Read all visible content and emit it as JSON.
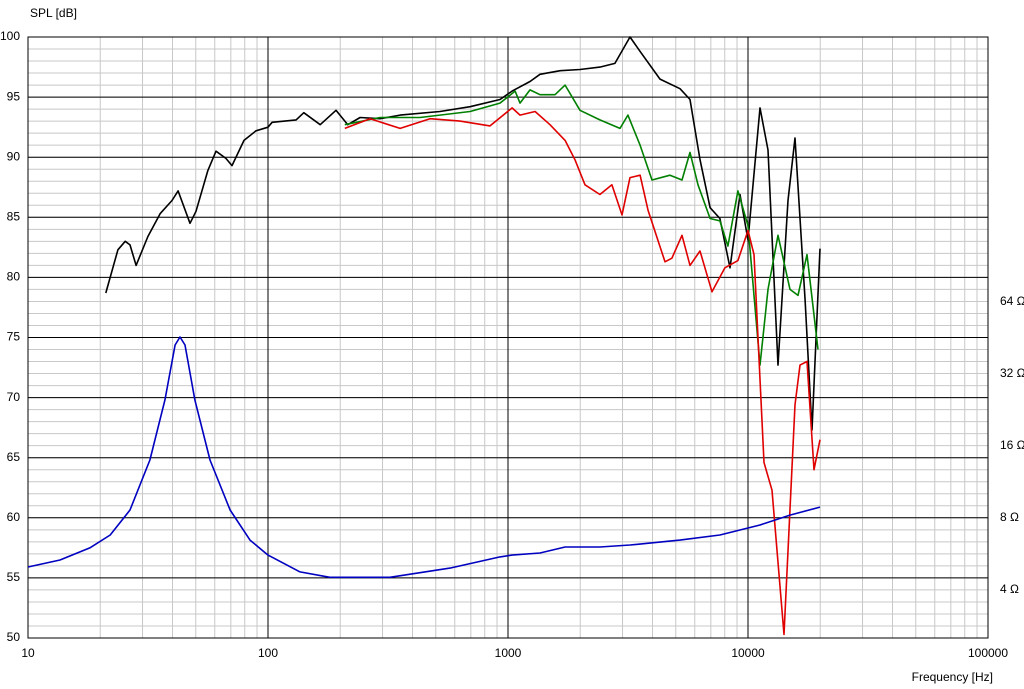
{
  "chart_data": {
    "type": "line",
    "ylabel": "SPL [dB]",
    "xlabel": "Frequency [Hz]",
    "xscale": "log",
    "xlim": [
      10,
      100000
    ],
    "xticks": [
      10,
      100,
      1000,
      10000,
      100000
    ],
    "ylim": [
      50,
      100
    ],
    "yticks": [
      50,
      55,
      60,
      65,
      70,
      75,
      80,
      85,
      90,
      95,
      100
    ],
    "y2scale": "log",
    "y2lim": [
      2.52,
      820.8
    ],
    "y2ticks": [
      {
        "value": 4,
        "label": "4 Ω"
      },
      {
        "value": 8,
        "label": "8 Ω"
      },
      {
        "value": 16,
        "label": "16 Ω"
      },
      {
        "value": 32,
        "label": "32 Ω"
      },
      {
        "value": 64,
        "label": "64 Ω"
      }
    ],
    "grid": true,
    "series": [
      {
        "color": "#000000",
        "x": [
          21.1,
          23.7,
          25.4,
          26.6,
          28.2,
          31.6,
          35.5,
          39.8,
          42.2,
          47.3,
          50.1,
          56.2,
          60.7,
          66.8,
          70.8,
          79.4,
          89.1,
          100,
          104,
          131,
          141,
          165,
          192,
          215,
          242,
          293,
          355,
          521,
          695,
          926,
          1040,
          1235,
          1360,
          1650,
          1995,
          2415,
          2790,
          3225,
          3550,
          4300,
          5210,
          5730,
          6310,
          6950,
          7640,
          8410,
          9260,
          10000,
          11220,
          12120,
          13340,
          14680,
          15700,
          17290,
          18480,
          19950
        ],
        "values": [
          78.7,
          82.3,
          83.0,
          82.7,
          81.0,
          83.4,
          85.3,
          86.4,
          87.2,
          84.5,
          85.5,
          88.9,
          90.5,
          89.9,
          89.3,
          91.4,
          92.2,
          92.5,
          92.9,
          93.1,
          93.7,
          92.7,
          93.9,
          92.7,
          93.3,
          93.2,
          93.5,
          93.8,
          94.2,
          94.8,
          95.5,
          96.3,
          96.9,
          97.2,
          97.3,
          97.5,
          97.8,
          100,
          98.8,
          96.5,
          95.7,
          94.8,
          89.8,
          85.8,
          84.9,
          80.8,
          86.9,
          83.1,
          94.1,
          90.6,
          72.7,
          86.4,
          91.6,
          78.1,
          67.3,
          82.4
        ]
      },
      {
        "color": "#008000",
        "x": [
          209,
          293,
          430,
          695,
          926,
          1070,
          1122,
          1235,
          1360,
          1570,
          1730,
          1995,
          2415,
          2930,
          3160,
          3550,
          3980,
          4730,
          5310,
          5730,
          6190,
          6950,
          7640,
          8250,
          9080,
          10000,
          11220,
          12120,
          13340,
          14960,
          16150,
          17620,
          19580
        ],
        "values": [
          92.7,
          93.3,
          93.3,
          93.8,
          94.5,
          95.5,
          94.5,
          95.6,
          95.2,
          95.2,
          96.0,
          93.9,
          93.1,
          92.4,
          93.5,
          91.0,
          88.1,
          88.5,
          88.1,
          90.4,
          87.7,
          84.9,
          84.7,
          82.6,
          87.2,
          84.3,
          72.7,
          79.0,
          83.5,
          79.0,
          78.5,
          81.9,
          74.0
        ]
      },
      {
        "color": "#e00000",
        "x": [
          209,
          266,
          355,
          473,
          631,
          841,
          1040,
          1122,
          1297,
          1496,
          1730,
          1900,
          2094,
          2415,
          2710,
          2985,
          3225,
          3550,
          3830,
          4510,
          4820,
          5310,
          5730,
          6310,
          7080,
          8010,
          9080,
          10000,
          10590,
          11660,
          12590,
          14130,
          15700,
          16470,
          17620,
          18840,
          19950
        ],
        "values": [
          92.4,
          93.2,
          92.4,
          93.2,
          93.0,
          92.6,
          94.1,
          93.5,
          93.8,
          92.7,
          91.4,
          89.8,
          87.7,
          86.9,
          87.7,
          85.2,
          88.3,
          88.5,
          85.6,
          81.3,
          81.6,
          83.5,
          81.0,
          82.2,
          78.8,
          80.8,
          81.4,
          83.9,
          81.9,
          64.6,
          62.3,
          50.3,
          69.4,
          72.7,
          73.0,
          64.0,
          66.5
        ]
      },
      {
        "color": "#0000c0",
        "axis": "y2",
        "x": [
          10,
          13.6,
          18.1,
          22.0,
          26.6,
          32.2,
          37.2,
          41.0,
          43.0,
          45.1,
          49.6,
          57.3,
          69.5,
          84.1,
          100,
          136,
          181,
          322,
          573,
          926,
          1040,
          1360,
          1730,
          2415,
          3225,
          5210,
          7640,
          11220,
          14960,
          19950
        ],
        "values": [
          4.99,
          5.34,
          6.0,
          6.79,
          8.64,
          13.98,
          24.9,
          42.3,
          45.7,
          42.3,
          24.9,
          13.98,
          8.64,
          6.47,
          5.6,
          4.76,
          4.52,
          4.52,
          4.94,
          5.5,
          5.6,
          5.71,
          6.05,
          6.05,
          6.17,
          6.47,
          6.79,
          7.48,
          8.23,
          8.89
        ]
      }
    ]
  }
}
